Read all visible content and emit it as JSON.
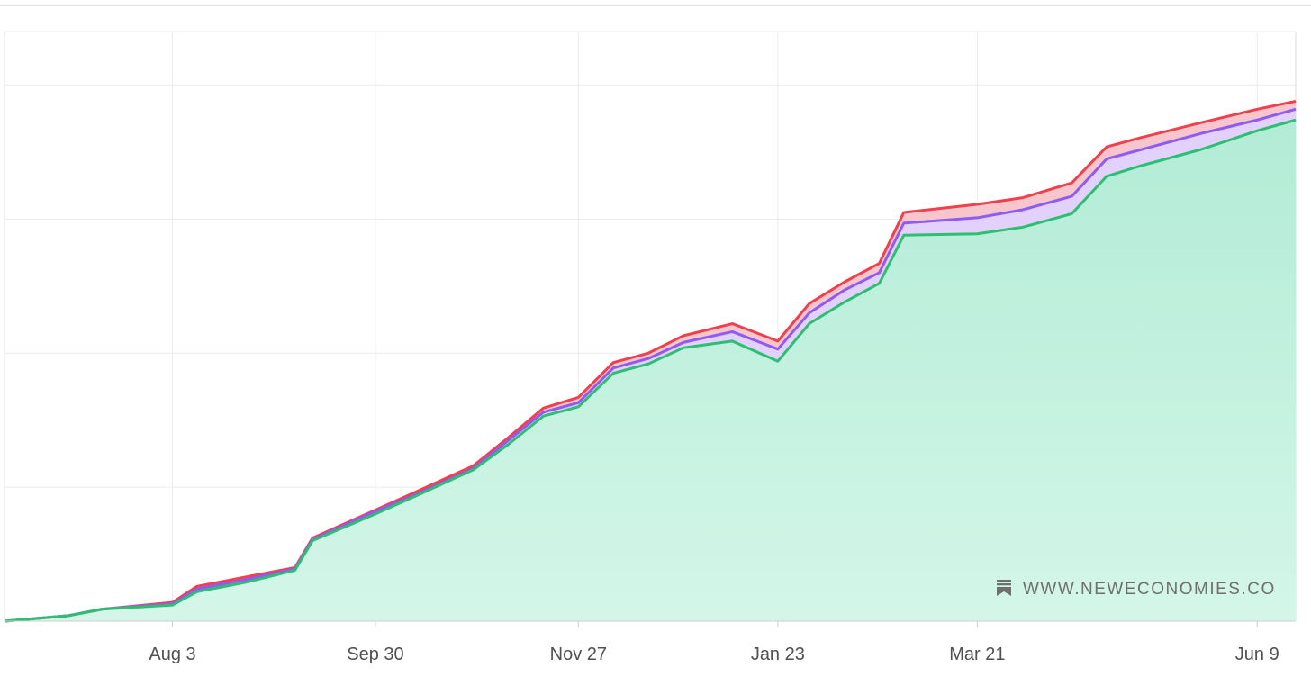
{
  "watermark": {
    "text": "WWW.NEWECONOMIES.CO",
    "icon": "bookmark-stack-icon"
  },
  "colors": {
    "fill_top": "#b2ecd6",
    "fill_bottom": "#d4f6e8",
    "red": "#f0404e",
    "purple": "#8f5bf3",
    "green": "#2cbf72",
    "blue": "#4a90ff",
    "band_red": "#f7c6cc",
    "band_purple": "#e2d2fb",
    "grid": "#ececec"
  },
  "chart_data": {
    "type": "area",
    "title": "",
    "xlabel": "",
    "ylabel": "",
    "x_axis_type": "date",
    "x_tick_labels": [
      "Aug 3",
      "Sep 30",
      "Nov 27",
      "Jan 23",
      "Mar 21",
      "Jun 9"
    ],
    "xlim": [
      "Jun 16",
      "Jun 20"
    ],
    "y_tick_labels_visible": false,
    "ylim": [
      0,
      4.4
    ],
    "grid": true,
    "legend": "none",
    "x": [
      "Jun 16",
      "Jul 4",
      "Jul 14",
      "Aug 3",
      "Aug 10",
      "Aug 24",
      "Sep 7",
      "Sep 12",
      "Sep 30",
      "Oct 12",
      "Oct 28",
      "Nov 7",
      "Nov 17",
      "Nov 27",
      "Dec 7",
      "Dec 17",
      "Dec 27",
      "Jan 10",
      "Jan 23",
      "Feb 1",
      "Feb 11",
      "Feb 21",
      "Feb 28",
      "Mar 21",
      "Apr 3",
      "Apr 17",
      "Apr 27",
      "May 7",
      "May 24",
      "Jun 9",
      "Jun 20"
    ],
    "series": [
      {
        "color": "#2cbf72",
        "values": [
          0,
          0.04,
          0.09,
          0.12,
          0.22,
          0.29,
          0.38,
          0.6,
          0.8,
          0.94,
          1.13,
          1.32,
          1.53,
          1.6,
          1.85,
          1.92,
          2.04,
          2.09,
          1.94,
          2.22,
          2.38,
          2.52,
          2.88,
          2.89,
          2.94,
          3.04,
          3.32,
          3.4,
          3.52,
          3.66,
          3.74
        ]
      },
      {
        "color": "#8f5bf3",
        "values": [
          0,
          0.04,
          0.09,
          0.13,
          0.24,
          0.31,
          0.39,
          0.61,
          0.82,
          0.95,
          1.14,
          1.35,
          1.56,
          1.63,
          1.89,
          1.96,
          2.08,
          2.16,
          2.03,
          2.3,
          2.47,
          2.6,
          2.97,
          3.01,
          3.07,
          3.17,
          3.45,
          3.52,
          3.64,
          3.74,
          3.82
        ]
      },
      {
        "color": "#f0404e",
        "values": [
          0,
          0.04,
          0.09,
          0.14,
          0.26,
          0.33,
          0.4,
          0.62,
          0.83,
          0.97,
          1.16,
          1.37,
          1.59,
          1.67,
          1.93,
          2.0,
          2.13,
          2.22,
          2.09,
          2.37,
          2.53,
          2.67,
          3.05,
          3.11,
          3.16,
          3.27,
          3.54,
          3.61,
          3.72,
          3.82,
          3.88
        ]
      }
    ]
  }
}
